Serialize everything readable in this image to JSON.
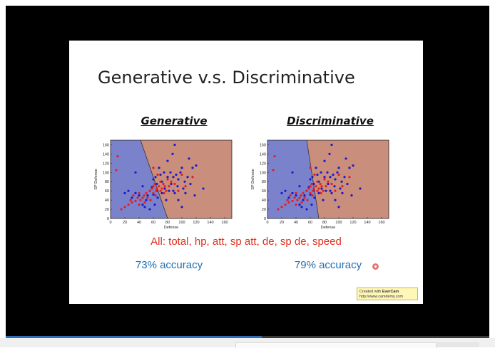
{
  "slide": {
    "title": "Generative v.s. Discriminative",
    "subtitle": "All: total, hp, att, sp att, de, sp de, speed",
    "panels": [
      {
        "label": "Generative",
        "accuracy": "73% accuracy"
      },
      {
        "label": "Discriminative",
        "accuracy": "79% accuracy"
      }
    ],
    "watermark": {
      "line1_prefix": "Created with ",
      "brand": "EverCam",
      "line2": "http://www.camdemy.com"
    }
  },
  "player": {
    "progress": 0.53,
    "accent": "#2f6db5"
  },
  "colors": {
    "blue_region": "#7b82cc",
    "red_region": "#c98e7c",
    "blue_points": "#1a1acc",
    "red_points": "#e02020"
  },
  "chart_data": [
    {
      "type": "scatter",
      "title": "Generative",
      "xlabel": "Defense",
      "ylabel": "SP Defense",
      "xlim": [
        0,
        170
      ],
      "ylim": [
        0,
        170
      ],
      "xticks": [
        0,
        20,
        40,
        60,
        80,
        100,
        120,
        140,
        160
      ],
      "yticks": [
        0,
        20,
        40,
        60,
        80,
        100,
        120,
        140,
        160
      ],
      "boundary": [
        [
          42,
          170
        ],
        [
          80,
          0
        ]
      ],
      "regions": [
        "blue",
        "red"
      ],
      "series": [
        {
          "color": "blue",
          "points": [
            [
              20,
              55
            ],
            [
              25,
              60
            ],
            [
              30,
              45
            ],
            [
              35,
              100
            ],
            [
              35,
              55
            ],
            [
              40,
              50
            ],
            [
              45,
              30
            ],
            [
              45,
              70
            ],
            [
              48,
              25
            ],
            [
              50,
              40
            ],
            [
              52,
              50
            ],
            [
              55,
              60
            ],
            [
              55,
              20
            ],
            [
              58,
              68
            ],
            [
              60,
              85
            ],
            [
              60,
              52
            ],
            [
              62,
              30
            ],
            [
              63,
              90
            ],
            [
              65,
              60
            ],
            [
              65,
              75
            ],
            [
              66,
              45
            ],
            [
              68,
              110
            ],
            [
              70,
              95
            ],
            [
              72,
              80
            ],
            [
              72,
              55
            ],
            [
              75,
              100
            ],
            [
              76,
              65
            ],
            [
              78,
              40
            ],
            [
              80,
              125
            ],
            [
              80,
              90
            ],
            [
              82,
              60
            ],
            [
              84,
              100
            ],
            [
              85,
              75
            ],
            [
              87,
              140
            ],
            [
              88,
              90
            ],
            [
              88,
              60
            ],
            [
              90,
              160
            ],
            [
              90,
              55
            ],
            [
              92,
              95
            ],
            [
              94,
              70
            ],
            [
              95,
              85
            ],
            [
              95,
              40
            ],
            [
              98,
              100
            ],
            [
              100,
              110
            ],
            [
              100,
              25
            ],
            [
              102,
              65
            ],
            [
              104,
              80
            ],
            [
              105,
              55
            ],
            [
              108,
              90
            ],
            [
              110,
              130
            ],
            [
              112,
              75
            ],
            [
              115,
              110
            ],
            [
              118,
              50
            ],
            [
              120,
              115
            ],
            [
              130,
              65
            ]
          ]
        },
        {
          "color": "red",
          "points": [
            [
              8,
              105
            ],
            [
              10,
              135
            ],
            [
              15,
              20
            ],
            [
              20,
              25
            ],
            [
              25,
              30
            ],
            [
              28,
              40
            ],
            [
              30,
              35
            ],
            [
              32,
              50
            ],
            [
              35,
              38
            ],
            [
              38,
              45
            ],
            [
              40,
              30
            ],
            [
              40,
              55
            ],
            [
              42,
              40
            ],
            [
              45,
              45
            ],
            [
              47,
              50
            ],
            [
              48,
              35
            ],
            [
              50,
              55
            ],
            [
              52,
              45
            ],
            [
              55,
              60
            ],
            [
              56,
              40
            ],
            [
              58,
              65
            ],
            [
              60,
              55
            ],
            [
              60,
              70
            ],
            [
              62,
              75
            ],
            [
              63,
              50
            ],
            [
              64,
              60
            ],
            [
              65,
              65
            ],
            [
              66,
              95
            ],
            [
              68,
              70
            ],
            [
              70,
              60
            ],
            [
              70,
              80
            ],
            [
              72,
              65
            ],
            [
              74,
              75
            ],
            [
              75,
              55
            ],
            [
              76,
              70
            ],
            [
              78,
              60
            ],
            [
              80,
              85
            ],
            [
              82,
              70
            ],
            [
              85,
              80
            ],
            [
              90,
              75
            ],
            [
              95,
              60
            ],
            [
              100,
              95
            ],
            [
              105,
              70
            ],
            [
              60,
              110
            ],
            [
              115,
              90
            ]
          ]
        }
      ]
    },
    {
      "type": "scatter",
      "title": "Discriminative",
      "xlabel": "Defense",
      "ylabel": "SP Defense",
      "xlim": [
        0,
        170
      ],
      "ylim": [
        0,
        170
      ],
      "xticks": [
        0,
        20,
        40,
        60,
        80,
        100,
        120,
        140,
        160
      ],
      "yticks": [
        0,
        20,
        40,
        60,
        80,
        100,
        120,
        140,
        160
      ],
      "boundary": [
        [
          55,
          170
        ],
        [
          72,
          0
        ]
      ],
      "regions": [
        "blue",
        "red"
      ],
      "series": [
        {
          "color": "blue",
          "points": [
            [
              20,
              55
            ],
            [
              25,
              60
            ],
            [
              30,
              45
            ],
            [
              35,
              100
            ],
            [
              35,
              55
            ],
            [
              40,
              50
            ],
            [
              45,
              30
            ],
            [
              45,
              70
            ],
            [
              48,
              25
            ],
            [
              50,
              40
            ],
            [
              52,
              50
            ],
            [
              55,
              60
            ],
            [
              55,
              20
            ],
            [
              58,
              68
            ],
            [
              60,
              85
            ],
            [
              60,
              52
            ],
            [
              62,
              30
            ],
            [
              63,
              90
            ],
            [
              65,
              60
            ],
            [
              65,
              75
            ],
            [
              66,
              45
            ],
            [
              68,
              110
            ],
            [
              70,
              95
            ],
            [
              72,
              80
            ],
            [
              72,
              55
            ],
            [
              75,
              100
            ],
            [
              76,
              65
            ],
            [
              78,
              40
            ],
            [
              80,
              125
            ],
            [
              80,
              90
            ],
            [
              82,
              60
            ],
            [
              84,
              100
            ],
            [
              85,
              75
            ],
            [
              87,
              140
            ],
            [
              88,
              90
            ],
            [
              88,
              60
            ],
            [
              90,
              160
            ],
            [
              90,
              55
            ],
            [
              92,
              95
            ],
            [
              94,
              70
            ],
            [
              95,
              85
            ],
            [
              95,
              40
            ],
            [
              98,
              100
            ],
            [
              100,
              110
            ],
            [
              100,
              25
            ],
            [
              102,
              65
            ],
            [
              104,
              80
            ],
            [
              105,
              55
            ],
            [
              108,
              90
            ],
            [
              110,
              130
            ],
            [
              112,
              75
            ],
            [
              115,
              110
            ],
            [
              118,
              50
            ],
            [
              120,
              115
            ],
            [
              130,
              65
            ]
          ]
        },
        {
          "color": "red",
          "points": [
            [
              8,
              105
            ],
            [
              10,
              135
            ],
            [
              15,
              20
            ],
            [
              20,
              25
            ],
            [
              25,
              30
            ],
            [
              28,
              40
            ],
            [
              30,
              35
            ],
            [
              32,
              50
            ],
            [
              35,
              38
            ],
            [
              38,
              45
            ],
            [
              40,
              30
            ],
            [
              40,
              55
            ],
            [
              42,
              40
            ],
            [
              45,
              45
            ],
            [
              47,
              50
            ],
            [
              48,
              35
            ],
            [
              50,
              55
            ],
            [
              52,
              45
            ],
            [
              55,
              60
            ],
            [
              56,
              40
            ],
            [
              58,
              65
            ],
            [
              60,
              55
            ],
            [
              60,
              70
            ],
            [
              62,
              75
            ],
            [
              63,
              50
            ],
            [
              64,
              60
            ],
            [
              65,
              65
            ],
            [
              66,
              95
            ],
            [
              68,
              70
            ],
            [
              70,
              60
            ],
            [
              70,
              80
            ],
            [
              72,
              65
            ],
            [
              74,
              75
            ],
            [
              75,
              55
            ],
            [
              76,
              70
            ],
            [
              78,
              60
            ],
            [
              80,
              85
            ],
            [
              82,
              70
            ],
            [
              85,
              80
            ],
            [
              90,
              75
            ],
            [
              95,
              60
            ],
            [
              100,
              95
            ],
            [
              105,
              70
            ],
            [
              60,
              110
            ],
            [
              115,
              90
            ]
          ]
        }
      ]
    }
  ]
}
